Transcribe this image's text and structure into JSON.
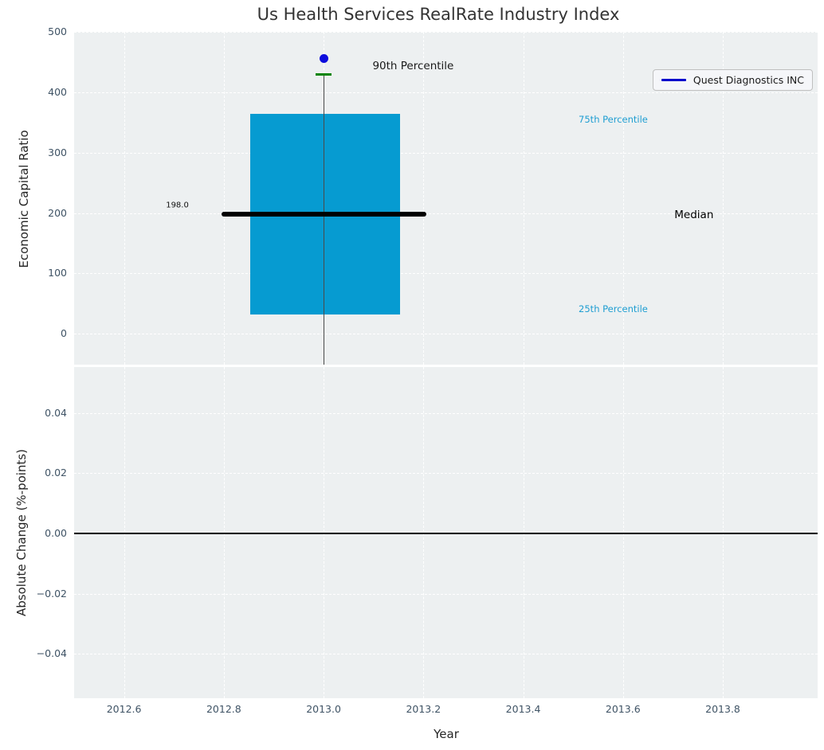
{
  "figure": {
    "title": "Us Health Services RealRate Industry Index",
    "bg_color": "#ffffff",
    "axes_bg_color": "#edf0f1",
    "grid_color": "#ffffff",
    "tick_color": "#3f5365"
  },
  "chart_data": [
    {
      "type": "boxplot",
      "title": "Us Health Services RealRate Industry Index",
      "ylabel": "Economic Capital Ratio",
      "xlim": [
        2012.5,
        2013.99
      ],
      "ylim": [
        -51,
        500
      ],
      "grid": true,
      "legend_position": "upper right",
      "x_ticks": [
        {
          "v": 2012.6,
          "label": "2012.6"
        },
        {
          "v": 2012.8,
          "label": "2012.8"
        },
        {
          "v": 2013.0,
          "label": "2013.0"
        },
        {
          "v": 2013.2,
          "label": "2013.2"
        },
        {
          "v": 2013.4,
          "label": "2013.4"
        },
        {
          "v": 2013.6,
          "label": "2013.6"
        },
        {
          "v": 2013.8,
          "label": "2013.8"
        }
      ],
      "y_ticks": [
        {
          "v": 0,
          "label": "0"
        },
        {
          "v": 100,
          "label": "100"
        },
        {
          "v": 200,
          "label": "200"
        },
        {
          "v": 300,
          "label": "300"
        },
        {
          "v": 400,
          "label": "400"
        },
        {
          "v": 500,
          "label": "500"
        }
      ],
      "legend": {
        "label": "Quest Diagnostics INC",
        "line_color": "#0000cc"
      },
      "box": {
        "x_center": 2013.0,
        "box_left": 2012.853,
        "box_right": 2013.153,
        "q1": 32,
        "median": 198,
        "q3": 364,
        "p90": 430,
        "whisker_low": -51,
        "median_line_left": 2012.796,
        "median_line_right": 2013.206,
        "cap_width_years": 0.032,
        "box_color": "#069bd1",
        "median_color": "#000000",
        "p90_color": "#048404",
        "whisker_color": "#4a4a4a"
      },
      "series": [
        {
          "name": "Quest Diagnostics INC",
          "x": 2013.0,
          "y": 456,
          "color": "#0d0ddd",
          "marker": "dot"
        }
      ],
      "annotations": [
        {
          "name": "median-value-label",
          "text": "198.0",
          "x": 2012.684,
          "y": 213,
          "size": 10,
          "color": "#111111"
        },
        {
          "name": "p90-label",
          "text": "90th Percentile",
          "x": 2013.098,
          "y": 443,
          "size": 13.5,
          "color": "#1a1a1a"
        },
        {
          "name": "p75-label",
          "text": "75th Percentile",
          "x": 2013.511,
          "y": 355,
          "size": 11.5,
          "color": "#1f9ed2"
        },
        {
          "name": "median-label",
          "text": "Median",
          "x": 2013.703,
          "y": 197,
          "size": 13.5,
          "color": "#000000"
        },
        {
          "name": "p25-label",
          "text": "25th Percentile",
          "x": 2013.511,
          "y": 41,
          "size": 11.5,
          "color": "#1f9ed2"
        }
      ]
    },
    {
      "type": "line",
      "xlabel": "Year",
      "ylabel": "Absolute Change (%-points)",
      "xlim": [
        2012.5,
        2013.99
      ],
      "ylim": [
        -0.0548,
        0.0553
      ],
      "grid": true,
      "x_ticks": [
        {
          "v": 2012.6,
          "label": "2012.6"
        },
        {
          "v": 2012.8,
          "label": "2012.8"
        },
        {
          "v": 2013.0,
          "label": "2013.0"
        },
        {
          "v": 2013.2,
          "label": "2013.2"
        },
        {
          "v": 2013.4,
          "label": "2013.4"
        },
        {
          "v": 2013.6,
          "label": "2013.6"
        },
        {
          "v": 2013.8,
          "label": "2013.8"
        }
      ],
      "y_ticks": [
        {
          "v": 0.04,
          "label": "0.04"
        },
        {
          "v": 0.02,
          "label": "0.02"
        },
        {
          "v": 0.0,
          "label": "0.00"
        },
        {
          "v": -0.02,
          "label": "−0.02"
        },
        {
          "v": -0.04,
          "label": "−0.04"
        }
      ],
      "zero_line": {
        "y": 0.0,
        "color": "#000000"
      },
      "series": []
    }
  ]
}
